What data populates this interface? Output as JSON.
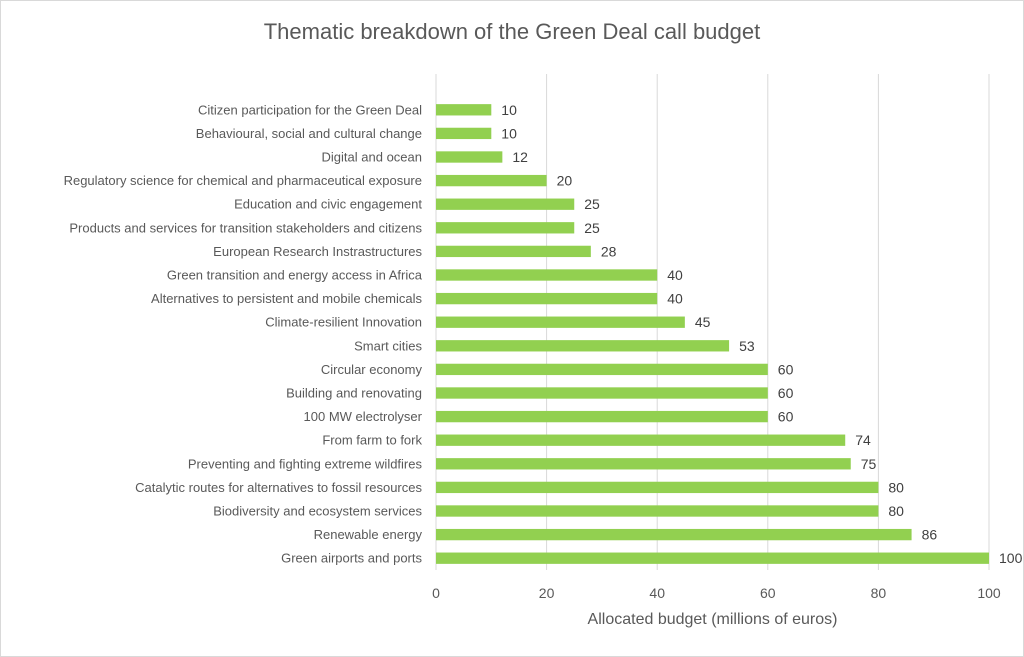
{
  "chart_data": {
    "type": "bar",
    "orientation": "horizontal",
    "title": "Thematic breakdown of the Green Deal call budget",
    "xlabel": "Allocated budget (millions of euros)",
    "ylabel": "",
    "xlim": [
      0,
      100
    ],
    "x_ticks": [
      0,
      20,
      40,
      60,
      80,
      100
    ],
    "grid": "vertical",
    "bar_color": "#92d050",
    "categories": [
      "Citizen participation for the Green Deal",
      "Behavioural, social and cultural change",
      "Digital and ocean",
      "Regulatory science for chemical and pharmaceutical exposure",
      "Education and civic engagement",
      "Products and services for transition stakeholders and citizens",
      "European Research Instrastructures",
      "Green transition and energy access in Africa",
      "Alternatives to persistent and mobile chemicals",
      "Climate-resilient Innovation",
      "Smart cities",
      "Circular economy",
      "Building and renovating",
      "100 MW electrolyser",
      "From farm to fork",
      "Preventing and fighting extreme wildfires",
      "Catalytic routes for alternatives to fossil resources",
      "Biodiversity and ecosystem services",
      "Renewable energy",
      "Green airports and ports"
    ],
    "values": [
      10,
      10,
      12,
      20,
      25,
      25,
      28,
      40,
      40,
      45,
      53,
      60,
      60,
      60,
      74,
      75,
      80,
      80,
      86,
      100
    ]
  }
}
